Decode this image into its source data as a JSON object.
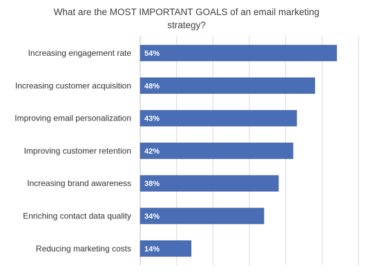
{
  "chart_data": {
    "type": "bar",
    "orientation": "horizontal",
    "title": "What are the MOST IMPORTANT GOALS of an email marketing strategy?",
    "xlabel": "",
    "ylabel": "",
    "categories": [
      "Increasing engagement rate",
      "Increasing customer acquisition",
      "Improving email personalization",
      "Improving customer retention",
      "Increasing brand awareness",
      "Enriching contact data quality",
      "Reducing marketing costs"
    ],
    "values": [
      54,
      48,
      43,
      42,
      38,
      34,
      14
    ],
    "value_labels": [
      "54%",
      "48%",
      "43%",
      "42%",
      "38%",
      "34%",
      "14%"
    ],
    "xlim": [
      0,
      60
    ],
    "grid": true,
    "legend": "none",
    "bar_color": "#4A6EB5",
    "bar_edge_color": "#3A5A9A"
  }
}
